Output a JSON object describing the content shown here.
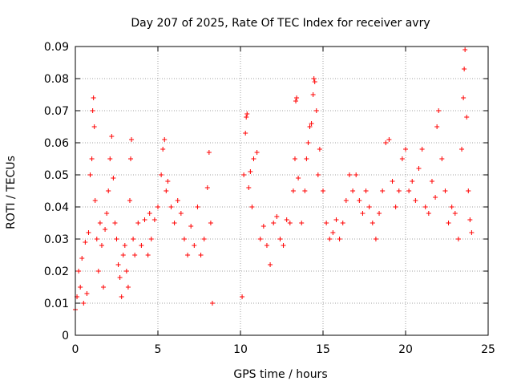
{
  "chart_data": {
    "type": "scatter",
    "title": "Day 207 of 2025, Rate Of TEC Index for receiver avry",
    "xlabel": "GPS time / hours",
    "ylabel": "ROTI / TECUs",
    "xlim": [
      0,
      25
    ],
    "ylim": [
      0,
      0.09
    ],
    "xticks": [
      0,
      5,
      10,
      15,
      20,
      25
    ],
    "xtick_labels": [
      "0",
      "5",
      "10",
      "15",
      "20",
      "25"
    ],
    "yticks": [
      0,
      0.01,
      0.02,
      0.03,
      0.04,
      0.05,
      0.06,
      0.07,
      0.08,
      0.09
    ],
    "ytick_labels": [
      "0",
      "0.01",
      "0.02",
      "0.03",
      "0.04",
      "0.05",
      "0.06",
      "0.07",
      "0.08",
      "0.09"
    ],
    "grid": true,
    "marker": "plus",
    "color": "#ff0000",
    "data_gap_hours": [
      8.3,
      10.1
    ],
    "series": [
      {
        "points": [
          [
            0.0,
            0.008
          ],
          [
            0.1,
            0.012
          ],
          [
            0.2,
            0.02
          ],
          [
            0.3,
            0.015
          ],
          [
            0.4,
            0.024
          ],
          [
            0.5,
            0.01
          ],
          [
            0.6,
            0.029
          ],
          [
            0.7,
            0.013
          ],
          [
            0.8,
            0.032
          ],
          [
            0.9,
            0.05
          ],
          [
            1.0,
            0.055
          ],
          [
            1.05,
            0.07
          ],
          [
            1.1,
            0.074
          ],
          [
            1.15,
            0.065
          ],
          [
            1.2,
            0.042
          ],
          [
            1.3,
            0.03
          ],
          [
            1.4,
            0.02
          ],
          [
            1.5,
            0.035
          ],
          [
            1.6,
            0.028
          ],
          [
            1.7,
            0.015
          ],
          [
            1.8,
            0.033
          ],
          [
            1.9,
            0.038
          ],
          [
            2.0,
            0.045
          ],
          [
            2.1,
            0.055
          ],
          [
            2.2,
            0.062
          ],
          [
            2.3,
            0.049
          ],
          [
            2.4,
            0.035
          ],
          [
            2.5,
            0.03
          ],
          [
            2.6,
            0.022
          ],
          [
            2.7,
            0.018
          ],
          [
            2.8,
            0.012
          ],
          [
            2.9,
            0.025
          ],
          [
            3.0,
            0.028
          ],
          [
            3.1,
            0.02
          ],
          [
            3.2,
            0.015
          ],
          [
            3.3,
            0.042
          ],
          [
            3.35,
            0.055
          ],
          [
            3.4,
            0.061
          ],
          [
            3.5,
            0.03
          ],
          [
            3.6,
            0.025
          ],
          [
            3.8,
            0.035
          ],
          [
            4.0,
            0.028
          ],
          [
            4.2,
            0.036
          ],
          [
            4.4,
            0.025
          ],
          [
            4.5,
            0.038
          ],
          [
            4.6,
            0.03
          ],
          [
            4.8,
            0.036
          ],
          [
            5.0,
            0.04
          ],
          [
            5.2,
            0.05
          ],
          [
            5.3,
            0.058
          ],
          [
            5.4,
            0.061
          ],
          [
            5.5,
            0.045
          ],
          [
            5.6,
            0.048
          ],
          [
            5.8,
            0.04
          ],
          [
            6.0,
            0.035
          ],
          [
            6.2,
            0.042
          ],
          [
            6.4,
            0.038
          ],
          [
            6.6,
            0.03
          ],
          [
            6.8,
            0.025
          ],
          [
            7.0,
            0.034
          ],
          [
            7.2,
            0.028
          ],
          [
            7.4,
            0.04
          ],
          [
            7.6,
            0.025
          ],
          [
            7.8,
            0.03
          ],
          [
            8.0,
            0.046
          ],
          [
            8.1,
            0.057
          ],
          [
            8.2,
            0.035
          ],
          [
            8.3,
            0.01
          ],
          [
            10.1,
            0.012
          ],
          [
            10.2,
            0.05
          ],
          [
            10.3,
            0.063
          ],
          [
            10.35,
            0.068
          ],
          [
            10.4,
            0.069
          ],
          [
            10.5,
            0.046
          ],
          [
            10.6,
            0.051
          ],
          [
            10.7,
            0.04
          ],
          [
            10.8,
            0.055
          ],
          [
            11.0,
            0.057
          ],
          [
            11.2,
            0.03
          ],
          [
            11.4,
            0.034
          ],
          [
            11.6,
            0.028
          ],
          [
            11.8,
            0.022
          ],
          [
            12.0,
            0.035
          ],
          [
            12.2,
            0.037
          ],
          [
            12.4,
            0.03
          ],
          [
            12.6,
            0.028
          ],
          [
            12.8,
            0.036
          ],
          [
            13.0,
            0.035
          ],
          [
            13.2,
            0.045
          ],
          [
            13.3,
            0.055
          ],
          [
            13.35,
            0.073
          ],
          [
            13.4,
            0.074
          ],
          [
            13.5,
            0.049
          ],
          [
            13.7,
            0.035
          ],
          [
            13.9,
            0.045
          ],
          [
            14.0,
            0.055
          ],
          [
            14.1,
            0.06
          ],
          [
            14.2,
            0.065
          ],
          [
            14.3,
            0.066
          ],
          [
            14.4,
            0.075
          ],
          [
            14.45,
            0.08
          ],
          [
            14.5,
            0.079
          ],
          [
            14.6,
            0.07
          ],
          [
            14.7,
            0.05
          ],
          [
            14.8,
            0.058
          ],
          [
            15.0,
            0.045
          ],
          [
            15.2,
            0.035
          ],
          [
            15.4,
            0.03
          ],
          [
            15.6,
            0.032
          ],
          [
            15.8,
            0.036
          ],
          [
            16.0,
            0.03
          ],
          [
            16.2,
            0.035
          ],
          [
            16.4,
            0.042
          ],
          [
            16.6,
            0.05
          ],
          [
            16.8,
            0.045
          ],
          [
            17.0,
            0.05
          ],
          [
            17.2,
            0.042
          ],
          [
            17.4,
            0.038
          ],
          [
            17.6,
            0.045
          ],
          [
            17.8,
            0.04
          ],
          [
            18.0,
            0.035
          ],
          [
            18.2,
            0.03
          ],
          [
            18.4,
            0.038
          ],
          [
            18.6,
            0.045
          ],
          [
            18.8,
            0.06
          ],
          [
            19.0,
            0.061
          ],
          [
            19.2,
            0.048
          ],
          [
            19.4,
            0.04
          ],
          [
            19.6,
            0.045
          ],
          [
            19.8,
            0.055
          ],
          [
            20.0,
            0.058
          ],
          [
            20.2,
            0.045
          ],
          [
            20.4,
            0.048
          ],
          [
            20.6,
            0.042
          ],
          [
            20.8,
            0.052
          ],
          [
            21.0,
            0.058
          ],
          [
            21.2,
            0.04
          ],
          [
            21.4,
            0.038
          ],
          [
            21.6,
            0.048
          ],
          [
            21.8,
            0.043
          ],
          [
            21.9,
            0.065
          ],
          [
            22.0,
            0.07
          ],
          [
            22.2,
            0.055
          ],
          [
            22.4,
            0.045
          ],
          [
            22.6,
            0.035
          ],
          [
            22.8,
            0.04
          ],
          [
            23.0,
            0.038
          ],
          [
            23.2,
            0.03
          ],
          [
            23.4,
            0.058
          ],
          [
            23.5,
            0.074
          ],
          [
            23.55,
            0.083
          ],
          [
            23.6,
            0.089
          ],
          [
            23.7,
            0.068
          ],
          [
            23.8,
            0.045
          ],
          [
            23.9,
            0.036
          ],
          [
            24.0,
            0.032
          ]
        ]
      }
    ]
  }
}
